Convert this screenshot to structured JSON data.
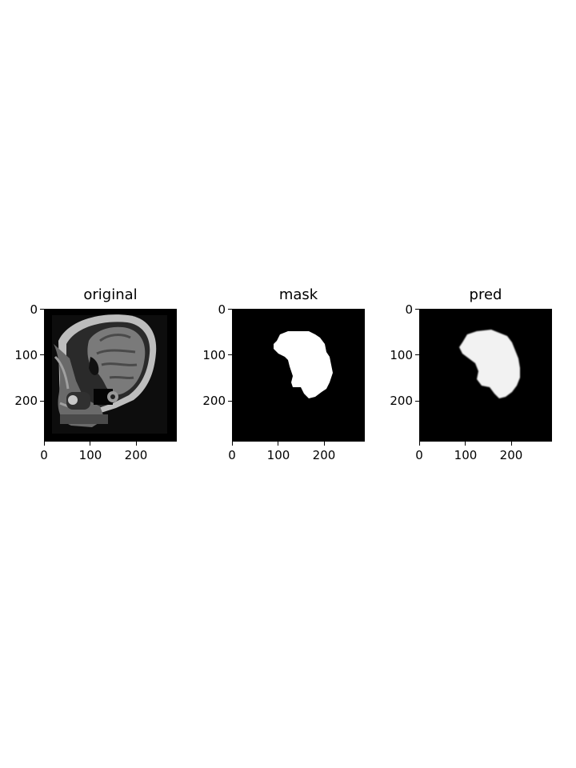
{
  "figure": {
    "panels": [
      {
        "id": "original",
        "title": "original",
        "kind": "mri-slice"
      },
      {
        "id": "mask",
        "title": "mask",
        "kind": "binary-mask"
      },
      {
        "id": "pred",
        "title": "pred",
        "kind": "predicted-mask"
      }
    ],
    "x_ticks": [
      "0",
      "100",
      "200"
    ],
    "y_ticks": [
      "0",
      "100",
      "200"
    ],
    "image_extent": [
      0,
      288
    ],
    "colors": {
      "background": "#000000",
      "mask": "#ffffff",
      "figure": "#ffffff"
    }
  }
}
